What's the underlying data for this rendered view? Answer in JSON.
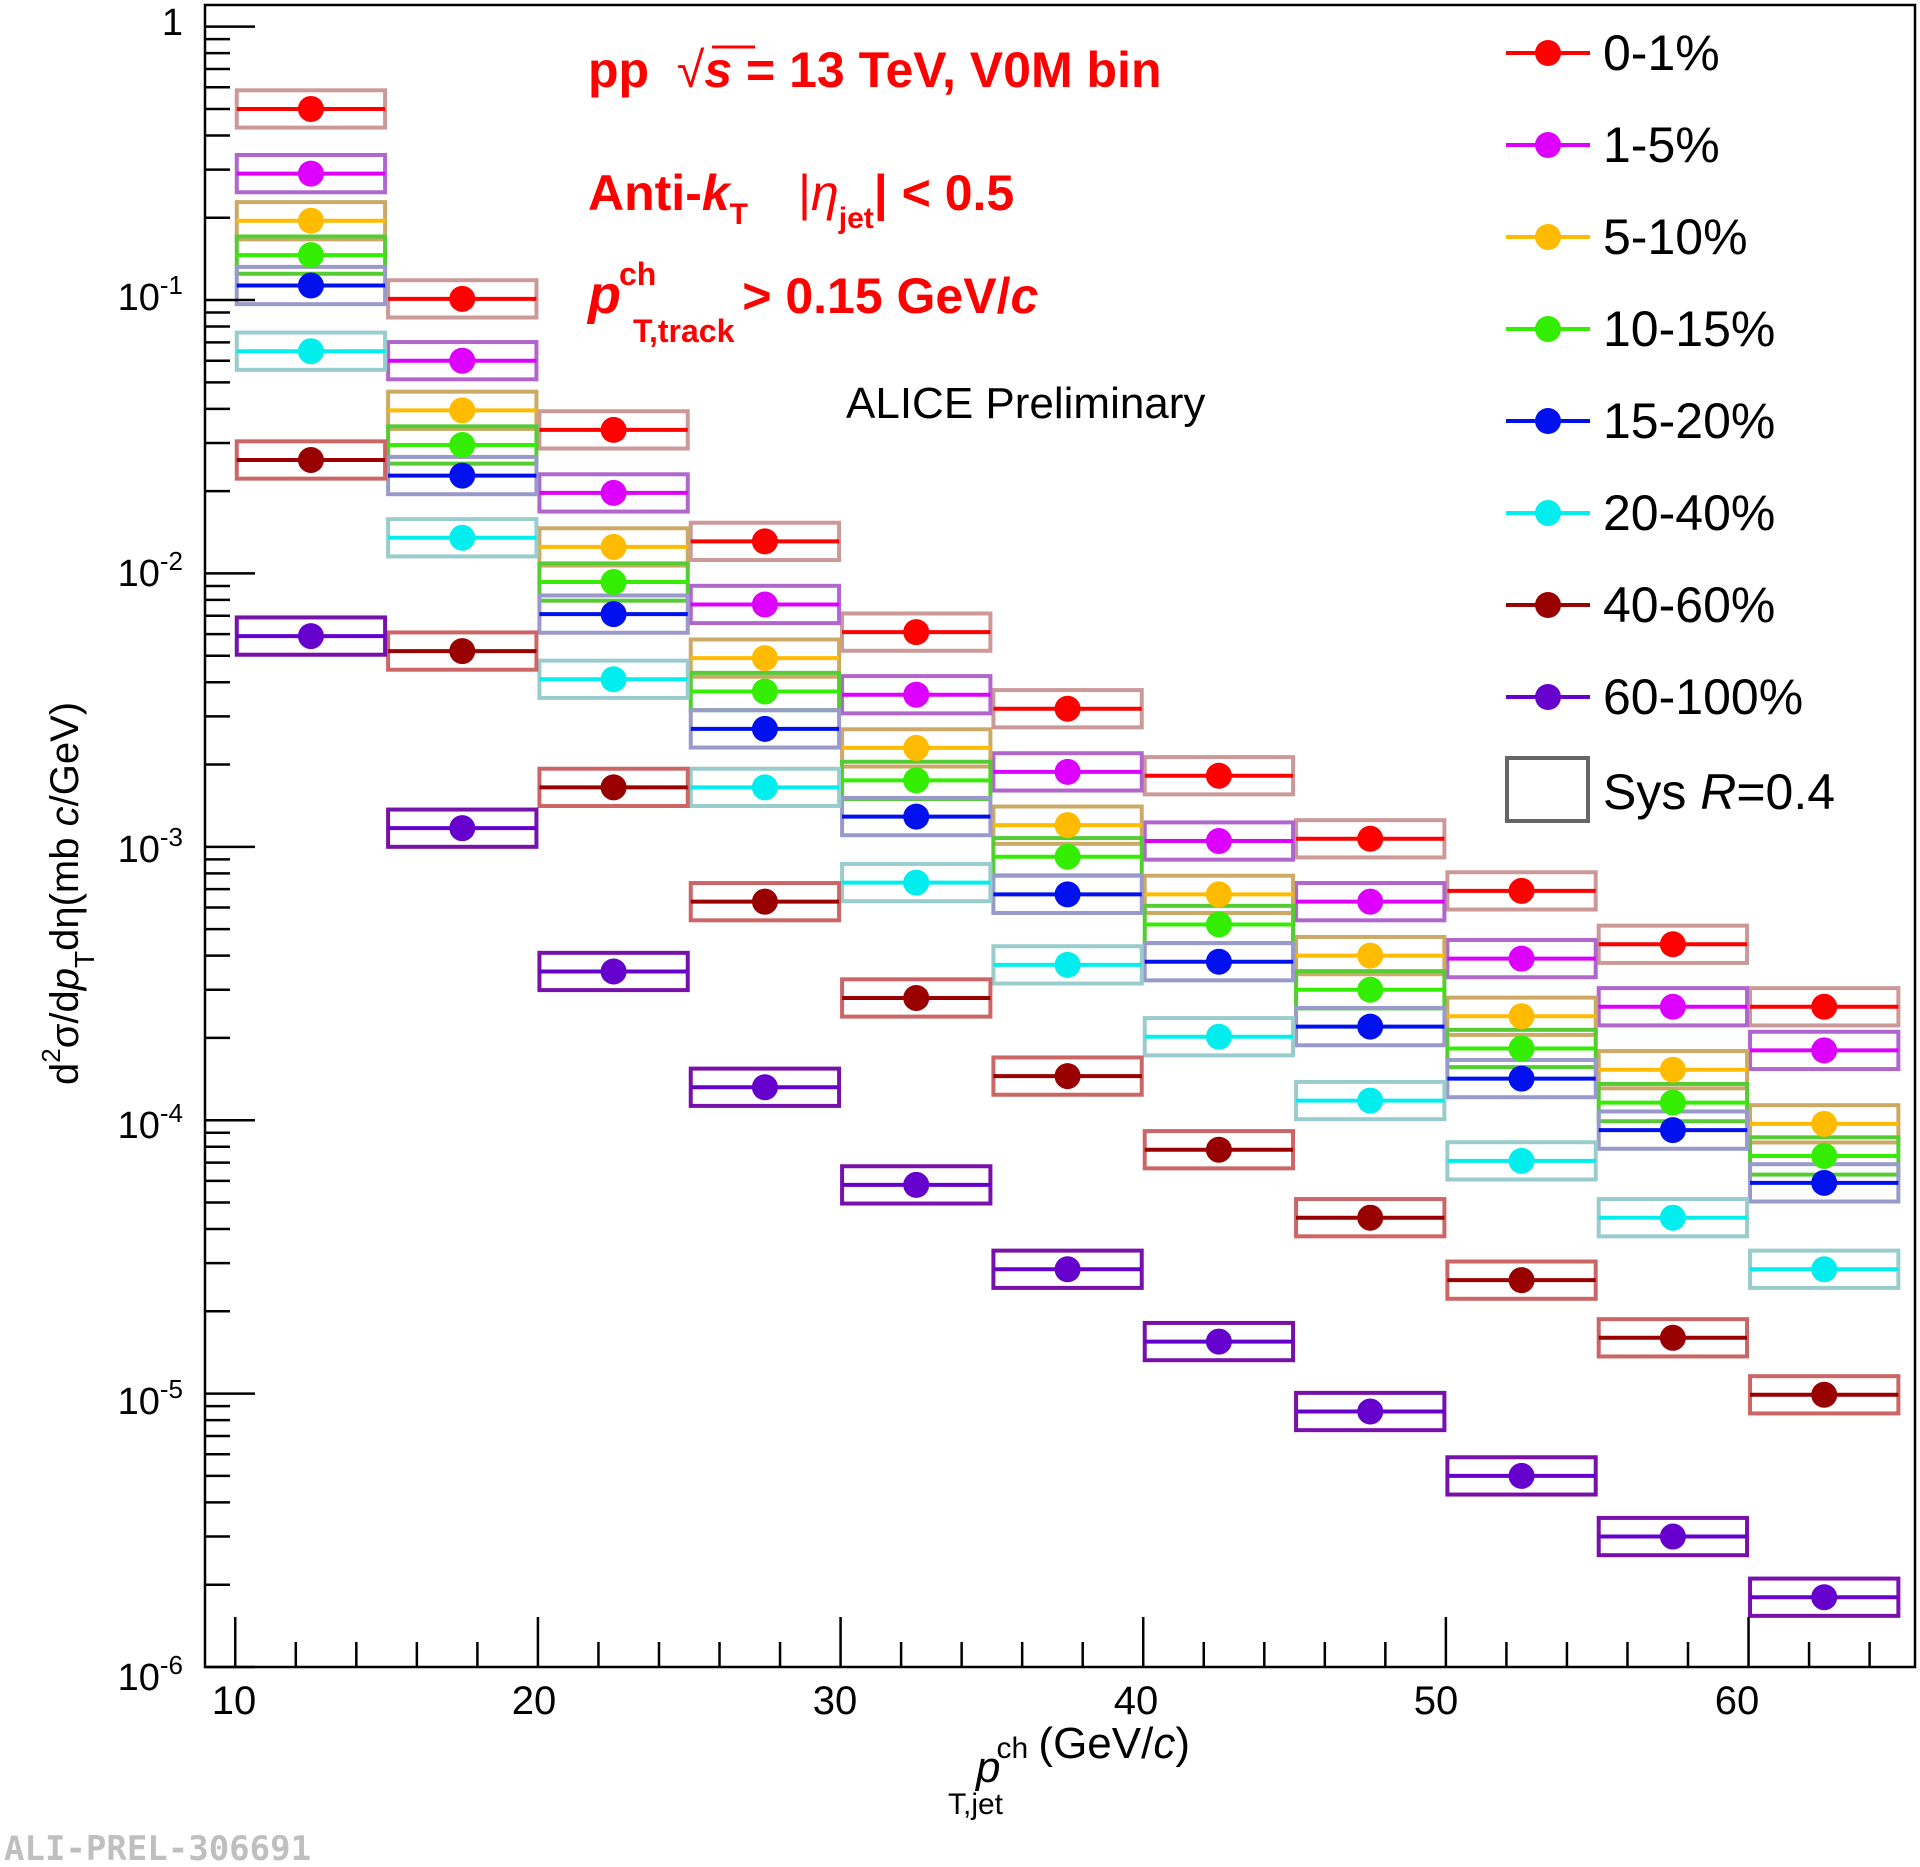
{
  "chart_data": {
    "type": "scatter",
    "yscale": "log",
    "xlim": [
      9,
      65.5
    ],
    "ylim": [
      1e-06,
      1.2
    ],
    "x_bin_width": 5,
    "x": [
      12.5,
      17.5,
      22.5,
      27.5,
      32.5,
      37.5,
      42.5,
      47.5,
      52.5,
      57.5,
      62.5
    ],
    "x_tick_labels": [
      "10",
      "20",
      "30",
      "40",
      "50",
      "60"
    ],
    "y_tick_labels": [
      {
        "base": "10",
        "exp": "",
        "text": "1"
      },
      {
        "base": "10",
        "exp": "-1"
      },
      {
        "base": "10",
        "exp": "-2"
      },
      {
        "base": "10",
        "exp": "-3"
      },
      {
        "base": "10",
        "exp": "-4"
      },
      {
        "base": "10",
        "exp": "-5"
      },
      {
        "base": "10",
        "exp": "-6"
      }
    ],
    "ylabel": {
      "a": "d",
      "a_sup": "2",
      "b": "σ/d",
      "c": "p",
      "c_sub": "T",
      "d": "dη(mb ",
      "e": "c",
      "f": "/GeV)"
    },
    "xlabel": {
      "p": "p",
      "sup": "ch",
      "sub": "T,jet",
      "rest": " (GeV/",
      "c": "c",
      "end": ")"
    },
    "series": [
      {
        "name": "0-1%",
        "color": "#ff0000",
        "box_color": "#cc9999",
        "values": [
          0.5,
          0.101,
          0.0335,
          0.0131,
          0.0061,
          0.0032,
          0.00182,
          0.00107,
          0.00069,
          0.00044,
          0.00026
        ]
      },
      {
        "name": "1-5%",
        "color": "#dd00ff",
        "box_color": "#b066cc",
        "values": [
          0.29,
          0.06,
          0.0197,
          0.0077,
          0.0036,
          0.00188,
          0.00105,
          0.00063,
          0.00039,
          0.00026,
          0.00018
        ]
      },
      {
        "name": "5-10%",
        "color": "#ffbb00",
        "box_color": "#ccaa66",
        "values": [
          0.195,
          0.0395,
          0.0125,
          0.0049,
          0.0023,
          0.0012,
          0.00067,
          0.0004,
          0.00024,
          0.000153,
          9.7e-05
        ]
      },
      {
        "name": "10-15%",
        "color": "#33ee00",
        "box_color": "#55cc33",
        "values": [
          0.146,
          0.0295,
          0.0093,
          0.0037,
          0.00175,
          0.00092,
          0.00052,
          0.0003,
          0.000183,
          0.000116,
          7.4e-05
        ]
      },
      {
        "name": "15-20%",
        "color": "#0011ee",
        "box_color": "#9999cc",
        "values": [
          0.113,
          0.0228,
          0.0071,
          0.0027,
          0.00129,
          0.00067,
          0.00038,
          0.00022,
          0.000142,
          9.2e-05,
          5.9e-05
        ]
      },
      {
        "name": "20-40%",
        "color": "#00eeee",
        "box_color": "#99cccc",
        "values": [
          0.065,
          0.0135,
          0.0041,
          0.00165,
          0.00074,
          0.00037,
          0.000202,
          0.000118,
          7.1e-05,
          4.4e-05,
          2.85e-05
        ]
      },
      {
        "name": "40-60%",
        "color": "#990000",
        "box_color": "#cc6666",
        "values": [
          0.026,
          0.0052,
          0.00165,
          0.00063,
          0.00028,
          0.000145,
          7.8e-05,
          4.4e-05,
          2.6e-05,
          1.6e-05,
          9.9e-06
        ]
      },
      {
        "name": "60-100%",
        "color": "#6600cc",
        "box_color": "#7711aa",
        "values": [
          0.0059,
          0.00117,
          0.00035,
          0.000132,
          5.8e-05,
          2.85e-05,
          1.55e-05,
          8.6e-06,
          5e-06,
          3e-06,
          1.8e-06
        ]
      }
    ],
    "legend_sys": {
      "prefix": "Sys ",
      "r": "R",
      "suffix": "=0.4",
      "color": "#666666"
    },
    "annotations": {
      "line1_a": "pp  ",
      "line1_sqrt": "√",
      "line1_s": "s",
      "line1_b": " = 13 TeV, V0M bin",
      "line2_a": "Anti-",
      "line2_k": "k",
      "line2_ksub": "T",
      "line2_eta_open": "|",
      "line2_eta": "η",
      "line2_etasub": "jet",
      "line2_eta_close": "| < 0.5",
      "line3_p": "p",
      "line3_sup": "ch",
      "line3_sub": "T,track",
      "line3_rest": " > 0.15 GeV/",
      "line3_c": "c",
      "preliminary": "ALICE Preliminary",
      "color": "#ff0000"
    },
    "footer_id": "ALI-PREL-306691",
    "legend_placement": "top-right"
  }
}
